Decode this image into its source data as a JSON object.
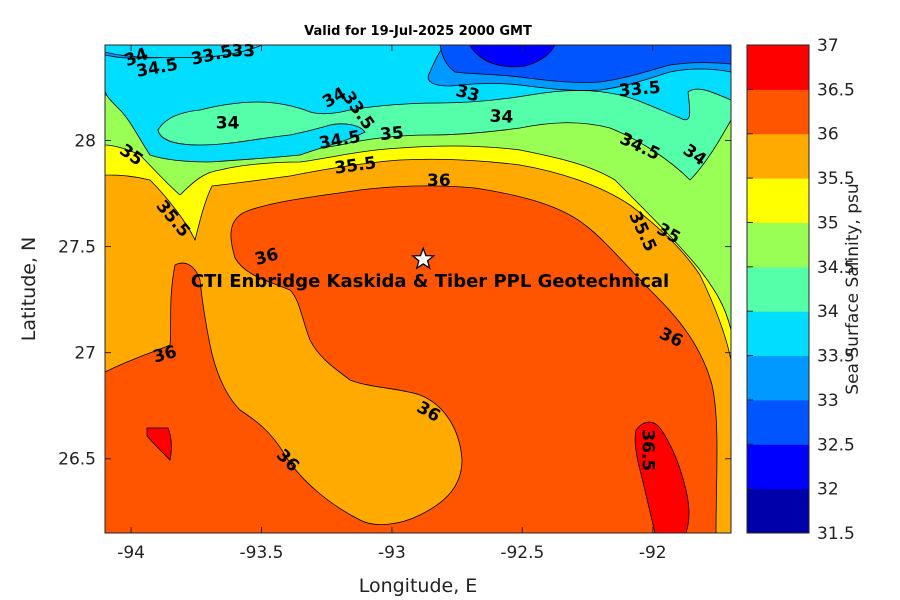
{
  "title": "Valid for 19-Jul-2025 2000 GMT",
  "project_label": "CTI Enbridge  Kaskida & Tiber PPL Geotechnical",
  "x_axis": {
    "label": "Longitude, E",
    "range": [
      -94.1,
      -91.7
    ],
    "ticks": [
      "-94",
      "-93.5",
      "-93",
      "-92.5",
      "-92"
    ]
  },
  "y_axis": {
    "label": "Latitude, N",
    "range": [
      26.15,
      28.45
    ],
    "ticks": [
      "26.5",
      "27",
      "27.5",
      "28"
    ]
  },
  "colorbar": {
    "label": "Sea Surface Salinity, psu",
    "levels": [
      "31.5",
      "32",
      "32.5",
      "33",
      "33.5",
      "34",
      "34.5",
      "35",
      "35.5",
      "36",
      "36.5",
      "37"
    ],
    "colors": [
      "#0000AA",
      "#0000FF",
      "#0055FF",
      "#0099FF",
      "#00DDFF",
      "#55FFAA",
      "#99FF55",
      "#FFFF00",
      "#FFAA00",
      "#FF5500",
      "#FF0000"
    ]
  },
  "site_marker": {
    "name": "star",
    "lon": -92.88,
    "lat": 27.44
  },
  "contour_labels": [
    {
      "text": "34",
      "lon": -93.98,
      "lat": 28.39,
      "rot": -20
    },
    {
      "text": "33.5",
      "lon": -93.69,
      "lat": 28.4,
      "rot": -12
    },
    {
      "text": "33",
      "lon": -93.57,
      "lat": 28.42,
      "rot": 0
    },
    {
      "text": "34.5",
      "lon": -93.9,
      "lat": 28.34,
      "rot": -10
    },
    {
      "text": "34",
      "lon": -93.63,
      "lat": 28.08,
      "rot": 0
    },
    {
      "text": "34",
      "lon": -93.22,
      "lat": 28.2,
      "rot": -30
    },
    {
      "text": "33.5",
      "lon": -93.13,
      "lat": 28.14,
      "rot": 55
    },
    {
      "text": "34.5",
      "lon": -93.2,
      "lat": 28.0,
      "rot": -10
    },
    {
      "text": "35",
      "lon": -93.0,
      "lat": 28.03,
      "rot": -5
    },
    {
      "text": "35.5",
      "lon": -93.14,
      "lat": 27.88,
      "rot": -8
    },
    {
      "text": "33",
      "lon": -92.71,
      "lat": 28.22,
      "rot": 15
    },
    {
      "text": "34",
      "lon": -92.58,
      "lat": 28.11,
      "rot": 3
    },
    {
      "text": "33.5",
      "lon": -92.05,
      "lat": 28.24,
      "rot": -5
    },
    {
      "text": "34.5",
      "lon": -92.05,
      "lat": 27.97,
      "rot": 25
    },
    {
      "text": "34",
      "lon": -91.84,
      "lat": 27.93,
      "rot": 35
    },
    {
      "text": "35",
      "lon": -94.0,
      "lat": 27.93,
      "rot": 35
    },
    {
      "text": "35.5",
      "lon": -93.84,
      "lat": 27.63,
      "rot": 50
    },
    {
      "text": "36",
      "lon": -92.82,
      "lat": 27.81,
      "rot": 0
    },
    {
      "text": "35.5",
      "lon": -92.04,
      "lat": 27.57,
      "rot": 65
    },
    {
      "text": "35",
      "lon": -91.94,
      "lat": 27.56,
      "rot": 30
    },
    {
      "text": "36",
      "lon": -93.48,
      "lat": 27.45,
      "rot": -15
    },
    {
      "text": "36",
      "lon": -93.87,
      "lat": 26.99,
      "rot": -15
    },
    {
      "text": "36",
      "lon": -91.93,
      "lat": 27.07,
      "rot": 25
    },
    {
      "text": "36",
      "lon": -92.86,
      "lat": 26.72,
      "rot": 30
    },
    {
      "text": "36.5",
      "lon": -92.02,
      "lat": 26.54,
      "rot": 90
    },
    {
      "text": "36",
      "lon": -93.4,
      "lat": 26.49,
      "rot": 45
    }
  ]
}
